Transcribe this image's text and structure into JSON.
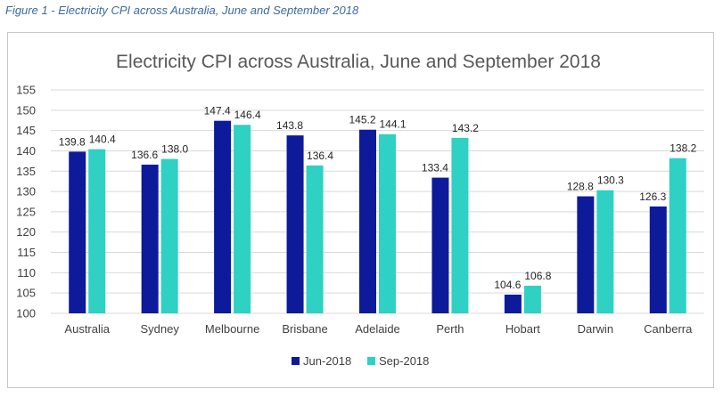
{
  "caption": "Figure 1 - Electricity CPI across Australia, June and September 2018",
  "colors": {
    "jun": "#0d1a9a",
    "sep": "#2ed1c4",
    "grid": "#d9d9d9"
  },
  "chart_data": {
    "type": "bar",
    "title": "Electricity CPI across Australia, June and September 2018",
    "xlabel": "",
    "ylabel": "",
    "ylim": [
      100,
      155
    ],
    "yticks": [
      "100",
      "105",
      "110",
      "115",
      "120",
      "125",
      "130",
      "135",
      "140",
      "145",
      "150",
      "155"
    ],
    "ytick_values": [
      100,
      105,
      110,
      115,
      120,
      125,
      130,
      135,
      140,
      145,
      150,
      155
    ],
    "grid": true,
    "legend_position": "bottom",
    "categories": [
      "Australia",
      "Sydney",
      "Melbourne",
      "Brisbane",
      "Adelaide",
      "Perth",
      "Hobart",
      "Darwin",
      "Canberra"
    ],
    "series": [
      {
        "name": "Jun-2018",
        "values": [
          139.8,
          136.6,
          147.4,
          143.8,
          145.2,
          133.4,
          104.6,
          128.8,
          126.3
        ],
        "labels": [
          "139.8",
          "136.6",
          "147.4",
          "143.8",
          "145.2",
          "133.4",
          "104.6",
          "128.8",
          "126.3"
        ]
      },
      {
        "name": "Sep-2018",
        "values": [
          140.4,
          138.0,
          146.4,
          136.4,
          144.1,
          143.2,
          106.8,
          130.3,
          138.2
        ],
        "labels": [
          "140.4",
          "138.0",
          "146.4",
          "136.4",
          "144.1",
          "143.2",
          "106.8",
          "130.3",
          "138.2"
        ]
      }
    ]
  }
}
